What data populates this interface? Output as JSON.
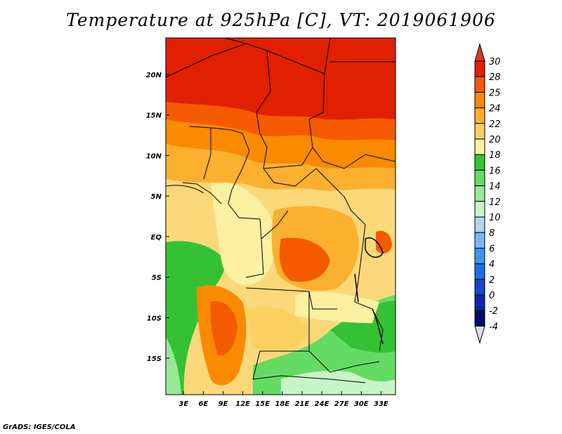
{
  "title": "Temperature at 925hPa [C], VT: 2019061906",
  "credit": "GrADS: IGES/COLA",
  "map": {
    "lat_labels": [
      "20N",
      "15N",
      "10N",
      "5N",
      "EQ",
      "5S",
      "10S",
      "15S"
    ],
    "lat_values": [
      20,
      15,
      10,
      5,
      0,
      -5,
      -10,
      -15
    ],
    "lon_labels": [
      "3E",
      "6E",
      "9E",
      "12E",
      "15E",
      "18E",
      "21E",
      "24E",
      "27E",
      "30E",
      "33E"
    ],
    "lon_values": [
      3,
      6,
      9,
      12,
      15,
      18,
      21,
      24,
      27,
      30,
      33
    ]
  },
  "colorbar": {
    "labels": [
      "30",
      "28",
      "25",
      "24",
      "22",
      "20",
      "18",
      "16",
      "14",
      "12",
      "10",
      "8",
      "6",
      "4",
      "2",
      "0",
      "-2",
      "-4"
    ],
    "colors": [
      "#a50000",
      "#e02000",
      "#f55a00",
      "#fa8a00",
      "#fbb030",
      "#fcd060",
      "#fdf0a0",
      "#34c234",
      "#64dc64",
      "#96ea96",
      "#c8f5c8",
      "#aad7f5",
      "#78b9f5",
      "#3c96f0",
      "#1e6ee6",
      "#1446c8",
      "#0a28a0",
      "#000a6e"
    ],
    "top_arrow_color": "#e03520",
    "bottom_arrow_color": "#ded9f7"
  }
}
